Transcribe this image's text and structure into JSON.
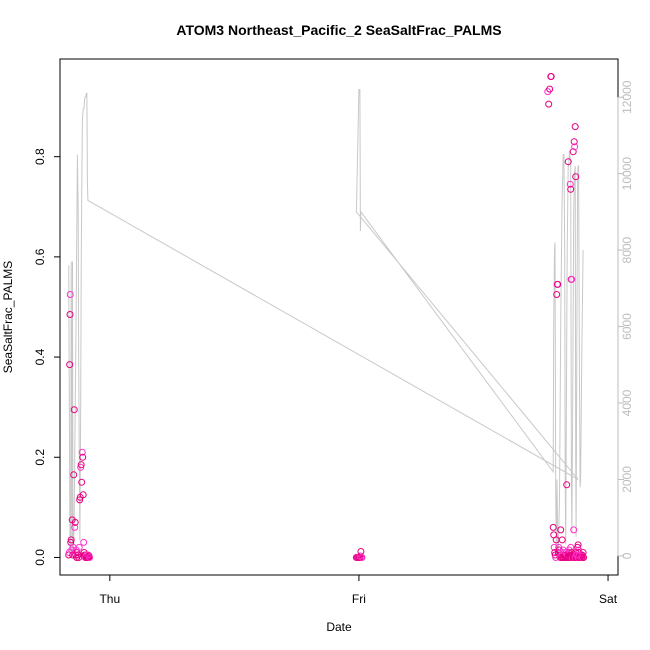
{
  "chart_data": {
    "type": "scatter",
    "title": "ATOM3 Northeast_Pacific_2 SeaSaltFrac_PALMS",
    "xlabel": "Date",
    "ylabel": "SeaSaltFrac_PALMS",
    "x_ticks": [
      {
        "label": "Thu",
        "value": 0
      },
      {
        "label": "Fri",
        "value": 1
      },
      {
        "label": "Sat",
        "value": 2
      }
    ],
    "xlim": [
      -0.2,
      2.04
    ],
    "ylim": [
      -0.035,
      0.995
    ],
    "y_ticks": [
      0.0,
      0.2,
      0.4,
      0.6,
      0.8
    ],
    "y_tick_labels": [
      "0.0",
      "0.2",
      "0.4",
      "0.6",
      "0.8"
    ],
    "y2lim": [
      -500,
      13000
    ],
    "y2_ticks": [
      0,
      2000,
      4000,
      6000,
      8000,
      10000,
      12000
    ],
    "y2_tick_labels": [
      "0",
      "2000",
      "4000",
      "6000",
      "8000",
      "10000",
      "12000"
    ],
    "grid": false,
    "colors": {
      "points_primary": "#e6007e",
      "points_secondary": "#ff33cc",
      "altitude_line": "#c8c8c8",
      "axis": "#000000",
      "right_axis": "#bdbdbd"
    },
    "series": [
      {
        "type": "scatter",
        "axis": "left",
        "points": [
          [
            -0.165,
            0.005
          ],
          [
            -0.163,
            0.01
          ],
          [
            -0.161,
            0.385
          ],
          [
            -0.16,
            0.485
          ],
          [
            -0.159,
            0.525
          ],
          [
            -0.157,
            0.03
          ],
          [
            -0.155,
            0.035
          ],
          [
            -0.153,
            0.015
          ],
          [
            -0.151,
            0.075
          ],
          [
            -0.149,
            0.005
          ],
          [
            -0.147,
            0.02
          ],
          [
            -0.145,
            0.165
          ],
          [
            -0.143,
            0.295
          ],
          [
            -0.141,
            0.06
          ],
          [
            -0.139,
            0.07
          ],
          [
            -0.137,
            0.005
          ],
          [
            -0.135,
            0.015
          ],
          [
            -0.133,
            0.0
          ],
          [
            -0.131,
            0.01
          ],
          [
            -0.129,
            0.005
          ],
          [
            -0.127,
            0.005
          ],
          [
            -0.125,
            0.0
          ],
          [
            -0.123,
            0.02
          ],
          [
            -0.121,
            0.115
          ],
          [
            -0.119,
            0.12
          ],
          [
            -0.117,
            0.18
          ],
          [
            -0.115,
            0.185
          ],
          [
            -0.113,
            0.15
          ],
          [
            -0.111,
            0.21
          ],
          [
            -0.109,
            0.2
          ],
          [
            -0.107,
            0.125
          ],
          [
            -0.105,
            0.03
          ],
          [
            -0.103,
            0.01
          ],
          [
            -0.101,
            0.005
          ],
          [
            -0.099,
            0.0
          ],
          [
            -0.097,
            0.005
          ],
          [
            -0.095,
            0.0
          ],
          [
            -0.093,
            0.005
          ],
          [
            -0.091,
            0.0
          ],
          [
            -0.089,
            0.0
          ],
          [
            -0.087,
            0.005
          ],
          [
            -0.085,
            0.0
          ],
          [
            -0.083,
            0.003
          ],
          [
            -0.081,
            0.0
          ],
          [
            0.99,
            0.0
          ],
          [
            0.992,
            0.0
          ],
          [
            0.994,
            0.0
          ],
          [
            0.996,
            0.0
          ],
          [
            0.998,
            0.0
          ],
          [
            1.0,
            0.0
          ],
          [
            1.002,
            0.0
          ],
          [
            1.004,
            0.0
          ],
          [
            1.006,
            0.003
          ],
          [
            1.008,
            0.012
          ],
          [
            1.01,
            0.0
          ],
          [
            1.012,
            0.0
          ],
          [
            1.78,
            0.06
          ],
          [
            1.782,
            0.045
          ],
          [
            1.784,
            0.02
          ],
          [
            1.786,
            0.01
          ],
          [
            1.788,
            0.005
          ],
          [
            1.79,
            0.0
          ],
          [
            1.792,
            0.035
          ],
          [
            1.794,
            0.525
          ],
          [
            1.796,
            0.545
          ],
          [
            1.798,
            0.545
          ],
          [
            1.8,
            0.01
          ],
          [
            1.802,
            0.02
          ],
          [
            1.804,
            0.015
          ],
          [
            1.806,
            0.005
          ],
          [
            1.808,
            0.0
          ],
          [
            1.81,
            0.055
          ],
          [
            1.812,
            0.0
          ],
          [
            1.814,
            0.005
          ],
          [
            1.816,
            0.035
          ],
          [
            1.818,
            0.0
          ],
          [
            1.82,
            0.015
          ],
          [
            1.822,
            0.0
          ],
          [
            1.824,
            0.005
          ],
          [
            1.826,
            0.01
          ],
          [
            1.828,
            0.0
          ],
          [
            1.83,
            0.005
          ],
          [
            1.832,
            0.01
          ],
          [
            1.834,
            0.145
          ],
          [
            1.836,
            0.0
          ],
          [
            1.838,
            0.005
          ],
          [
            1.84,
            0.0
          ],
          [
            1.842,
            0.01
          ],
          [
            1.844,
            0.015
          ],
          [
            1.846,
            0.0
          ],
          [
            1.848,
            0.005
          ],
          [
            1.85,
            0.02
          ],
          [
            1.852,
            0.0
          ],
          [
            1.854,
            0.01
          ],
          [
            1.856,
            0.0
          ],
          [
            1.858,
            0.005
          ],
          [
            1.86,
            0.0
          ],
          [
            1.862,
            0.055
          ],
          [
            1.864,
            0.0
          ],
          [
            1.866,
            0.005
          ],
          [
            1.868,
            0.0
          ],
          [
            1.87,
            0.01
          ],
          [
            1.872,
            0.0
          ],
          [
            1.874,
            0.005
          ],
          [
            1.876,
            0.0
          ],
          [
            1.878,
            0.005
          ],
          [
            1.88,
            0.0
          ],
          [
            1.882,
            0.01
          ],
          [
            1.884,
            0.0
          ],
          [
            1.886,
            0.005
          ],
          [
            1.888,
            0.0
          ],
          [
            1.89,
            0.005
          ],
          [
            1.892,
            0.0
          ],
          [
            1.894,
            0.0
          ],
          [
            1.896,
            0.005
          ],
          [
            1.898,
            0.0
          ],
          [
            1.9,
            0.01
          ],
          [
            1.902,
            0.0
          ],
          [
            1.758,
            0.93
          ],
          [
            1.762,
            0.905
          ],
          [
            1.766,
            0.935
          ],
          [
            1.77,
            0.96
          ],
          [
            1.772,
            0.96
          ],
          [
            1.84,
            0.79
          ],
          [
            1.848,
            0.745
          ],
          [
            1.85,
            0.735
          ],
          [
            1.852,
            0.555
          ],
          [
            1.854,
            0.555
          ],
          [
            1.86,
            0.81
          ],
          [
            1.864,
            0.83
          ],
          [
            1.866,
            0.82
          ],
          [
            1.868,
            0.86
          ],
          [
            1.87,
            0.76
          ],
          [
            1.876,
            0.005
          ],
          [
            1.878,
            0.02
          ],
          [
            1.88,
            0.025
          ],
          [
            1.882,
            0.015
          ]
        ]
      },
      {
        "type": "line",
        "axis": "right",
        "points": [
          [
            -0.165,
            7600
          ],
          [
            -0.16,
            0
          ],
          [
            -0.157,
            500
          ],
          [
            -0.155,
            7700
          ],
          [
            -0.152,
            0
          ],
          [
            -0.15,
            7700
          ],
          [
            -0.148,
            0
          ],
          [
            -0.145,
            300
          ],
          [
            -0.142,
            1500
          ],
          [
            -0.14,
            3000
          ],
          [
            -0.135,
            6500
          ],
          [
            -0.13,
            10500
          ],
          [
            -0.127,
            9000
          ],
          [
            -0.125,
            5000
          ],
          [
            -0.122,
            2000
          ],
          [
            -0.12,
            400
          ],
          [
            -0.117,
            4000
          ],
          [
            -0.115,
            7500
          ],
          [
            -0.112,
            10000
          ],
          [
            -0.11,
            11400
          ],
          [
            -0.107,
            11700
          ],
          [
            -0.104,
            11700
          ],
          [
            -0.1,
            12000
          ],
          [
            -0.097,
            12000
          ],
          [
            -0.094,
            12100
          ],
          [
            -0.092,
            12100
          ],
          [
            -0.09,
            9800
          ],
          [
            -0.088,
            9300
          ],
          [
            1.88,
            2000
          ],
          [
            0.99,
            9000
          ],
          [
            1.0,
            12200
          ],
          [
            1.002,
            12200
          ],
          [
            1.004,
            12200
          ],
          [
            1.006,
            8500
          ],
          [
            1.008,
            9000
          ],
          [
            1.78,
            2200
          ],
          [
            1.782,
            6000
          ],
          [
            1.785,
            8000
          ],
          [
            1.787,
            8200
          ],
          [
            1.79,
            1800
          ],
          [
            1.792,
            0
          ],
          [
            1.795,
            2000
          ],
          [
            1.798,
            400
          ],
          [
            1.8,
            0
          ],
          [
            1.805,
            1500
          ],
          [
            1.81,
            6000
          ],
          [
            1.815,
            9200
          ],
          [
            1.82,
            10500
          ],
          [
            1.823,
            10500
          ],
          [
            1.826,
            8000
          ],
          [
            1.828,
            2000
          ],
          [
            1.83,
            300
          ],
          [
            1.833,
            4000
          ],
          [
            1.836,
            8000
          ],
          [
            1.84,
            10200
          ],
          [
            1.842,
            10200
          ],
          [
            1.845,
            10600
          ],
          [
            1.848,
            10400
          ],
          [
            1.85,
            10300
          ],
          [
            1.853,
            2000
          ],
          [
            1.855,
            600
          ],
          [
            1.858,
            4000
          ],
          [
            1.862,
            9000
          ],
          [
            1.865,
            10000
          ],
          [
            1.868,
            10200
          ],
          [
            1.87,
            2500
          ],
          [
            1.872,
            500
          ],
          [
            1.875,
            6000
          ],
          [
            1.878,
            9800
          ],
          [
            1.88,
            10200
          ],
          [
            1.882,
            10200
          ],
          [
            1.885,
            5000
          ],
          [
            1.888,
            1800
          ],
          [
            1.89,
            2000
          ],
          [
            1.895,
            5500
          ],
          [
            1.9,
            8000
          ]
        ]
      }
    ]
  }
}
